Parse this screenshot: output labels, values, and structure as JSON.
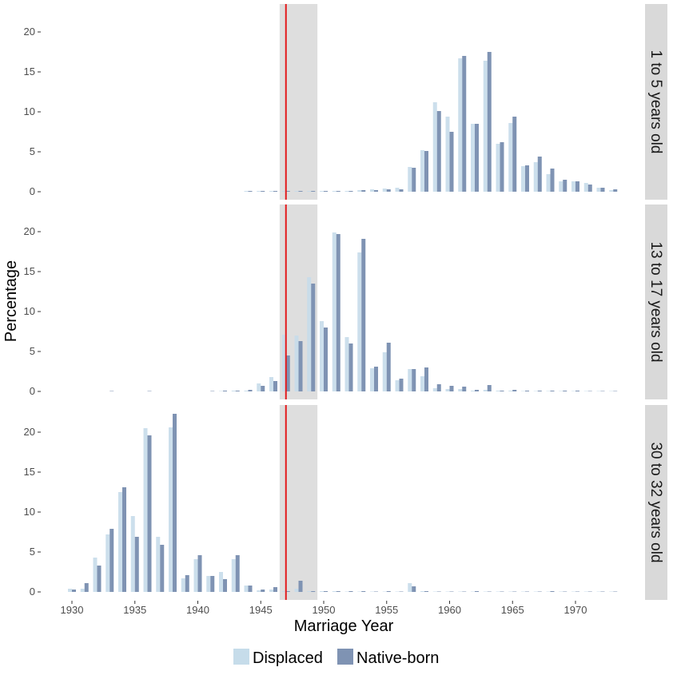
{
  "chart_data": {
    "type": "bar",
    "title": "",
    "xlabel": "Marriage Year",
    "ylabel": "Percentage",
    "xlim": [
      1928,
      1974
    ],
    "ylim": [
      0,
      24
    ],
    "x_ticks": [
      "1930",
      "1935",
      "1940",
      "1945",
      "1950",
      "1955",
      "1960",
      "1965",
      "1970"
    ],
    "y_ticks": [
      "0",
      "5",
      "10",
      "15",
      "20"
    ],
    "grid": false,
    "legend": {
      "placement": "bottom",
      "entries": [
        "Displaced",
        "Native-born"
      ]
    },
    "colors": {
      "Displaced": "#c6dcea",
      "Native-born": "#7f93b3",
      "shade": "#dedede",
      "reference_line": "#e31a1c",
      "strip": "#d9d9d9"
    },
    "shaded_interval": [
      1946.5,
      1949.5
    ],
    "reference_line_x": 1947,
    "years": [
      1930,
      1931,
      1932,
      1933,
      1934,
      1935,
      1936,
      1937,
      1938,
      1939,
      1940,
      1941,
      1942,
      1943,
      1944,
      1945,
      1946,
      1947,
      1948,
      1949,
      1950,
      1951,
      1952,
      1953,
      1954,
      1955,
      1956,
      1957,
      1958,
      1959,
      1960,
      1961,
      1962,
      1963,
      1964,
      1965,
      1966,
      1967,
      1968,
      1969,
      1970,
      1971,
      1972,
      1973
    ],
    "panels": [
      {
        "label": "1 to 5 years old",
        "series": [
          {
            "name": "Displaced",
            "values": [
              0,
              0,
              0,
              0,
              0,
              0,
              0,
              0,
              0,
              0,
              0,
              0,
              0,
              0,
              0.1,
              0.1,
              0.1,
              0.1,
              0.1,
              0.1,
              0.1,
              0.1,
              0.1,
              0.2,
              0.3,
              0.4,
              0.5,
              3.1,
              5.2,
              11.2,
              9.4,
              16.7,
              8.5,
              16.4,
              6.0,
              8.6,
              3.2,
              3.7,
              2.2,
              1.3,
              1.3,
              1.1,
              0.5,
              0.2
            ]
          },
          {
            "name": "Native-born",
            "values": [
              0,
              0,
              0,
              0,
              0,
              0,
              0,
              0,
              0,
              0,
              0,
              0,
              0,
              0,
              0.1,
              0.1,
              0.1,
              0.1,
              0.1,
              0.1,
              0.1,
              0.1,
              0.1,
              0.2,
              0.2,
              0.3,
              0.3,
              3.0,
              5.1,
              10.1,
              7.5,
              17.0,
              8.5,
              17.5,
              6.2,
              9.4,
              3.3,
              4.4,
              2.9,
              1.5,
              1.3,
              0.9,
              0.5,
              0.3
            ]
          }
        ]
      },
      {
        "label": "13 to 17 years old",
        "series": [
          {
            "name": "Displaced",
            "values": [
              0,
              0,
              0,
              0,
              0,
              0,
              0,
              0,
              0,
              0,
              0,
              0,
              0.05,
              0.1,
              0.1,
              1.0,
              1.8,
              7.1,
              7.0,
              14.3,
              8.8,
              19.9,
              6.8,
              17.4,
              2.9,
              4.9,
              1.4,
              2.8,
              1.9,
              0.4,
              0.3,
              0.3,
              0.1,
              0.2,
              0.1,
              0.1,
              0.05,
              0.05,
              0.05,
              0.05,
              0.05,
              0.05,
              0.05,
              0.05
            ]
          },
          {
            "name": "Native-born",
            "values": [
              0,
              0,
              0,
              0.05,
              0,
              0,
              0.05,
              0,
              0,
              0,
              0,
              0.05,
              0.1,
              0.1,
              0.2,
              0.7,
              1.3,
              4.5,
              6.3,
              13.5,
              8.0,
              19.7,
              6.0,
              19.1,
              3.1,
              6.1,
              1.6,
              2.8,
              3.0,
              0.9,
              0.7,
              0.6,
              0.2,
              0.8,
              0.1,
              0.2,
              0.1,
              0.1,
              0.1,
              0.1,
              0.1,
              0.05,
              0.05,
              0.05
            ]
          }
        ]
      },
      {
        "label": "30 to 32 years old",
        "series": [
          {
            "name": "Displaced",
            "values": [
              0.4,
              0.4,
              4.3,
              7.2,
              12.5,
              9.5,
              20.5,
              6.9,
              20.6,
              1.7,
              4.1,
              2.0,
              2.5,
              4.1,
              0.8,
              0.2,
              0.3,
              0.1,
              0.4,
              0.1,
              0.1,
              0.1,
              0.05,
              0.05,
              0.05,
              0.05,
              0.05,
              1.1,
              0.1,
              0.05,
              0.05,
              0.05,
              0.05,
              0.05,
              0.05,
              0.05,
              0.05,
              0.05,
              0.05,
              0.05,
              0.05,
              0.05,
              0.05,
              0.05
            ]
          },
          {
            "name": "Native-born",
            "values": [
              0.3,
              1.1,
              3.3,
              7.9,
              13.1,
              6.9,
              19.6,
              5.9,
              22.3,
              2.1,
              4.6,
              2.0,
              1.6,
              4.6,
              0.8,
              0.3,
              0.6,
              0.1,
              1.4,
              0.1,
              0.1,
              0.1,
              0.1,
              0.1,
              0.05,
              0.1,
              0.05,
              0.7,
              0.1,
              0.05,
              0.05,
              0.05,
              0.1,
              0.05,
              0.05,
              0.05,
              0.05,
              0.05,
              0.1,
              0.05,
              0.05,
              0.05,
              0.05,
              0.05
            ]
          }
        ]
      }
    ]
  }
}
